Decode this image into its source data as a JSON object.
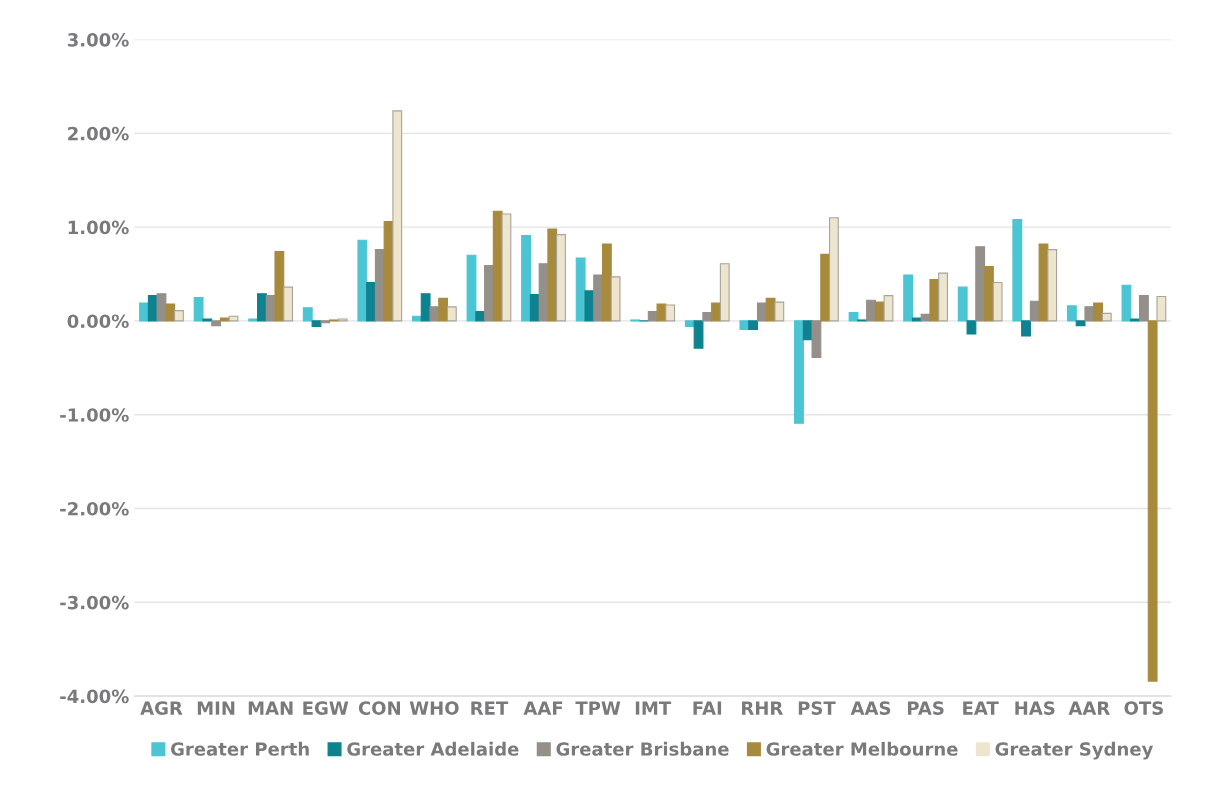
{
  "chart_data": {
    "type": "bar",
    "categories": [
      "AGR",
      "MIN",
      "MAN",
      "EGW",
      "CON",
      "WHO",
      "RET",
      "AAF",
      "TPW",
      "IMT",
      "FAI",
      "RHR",
      "PST",
      "AAS",
      "PAS",
      "EAT",
      "HAS",
      "AAR",
      "OTS"
    ],
    "series": [
      {
        "name": "Greater Perth",
        "color": "#4bc4d3",
        "values": [
          0.19,
          0.25,
          0.02,
          0.14,
          0.86,
          0.05,
          0.7,
          0.91,
          0.67,
          0.01,
          -0.06,
          -0.09,
          -1.09,
          0.09,
          0.49,
          0.36,
          1.08,
          0.16,
          0.38
        ]
      },
      {
        "name": "Greater Adelaide",
        "color": "#0f8290",
        "values": [
          0.27,
          0.02,
          0.29,
          -0.06,
          0.41,
          0.29,
          0.1,
          0.28,
          0.32,
          0.0,
          -0.29,
          -0.09,
          -0.2,
          0.01,
          0.03,
          -0.14,
          -0.16,
          -0.05,
          0.02
        ]
      },
      {
        "name": "Greater Brisbane",
        "color": "#948f89",
        "values": [
          0.29,
          -0.05,
          0.27,
          -0.02,
          0.76,
          0.15,
          0.59,
          0.61,
          0.49,
          0.1,
          0.09,
          0.19,
          -0.39,
          0.22,
          0.07,
          0.79,
          0.21,
          0.15,
          0.27
        ]
      },
      {
        "name": "Greater Melbourne",
        "color": "#a88a3c",
        "values": [
          0.18,
          0.03,
          0.74,
          0.01,
          1.06,
          0.24,
          1.17,
          0.98,
          0.82,
          0.18,
          0.19,
          0.24,
          0.71,
          0.2,
          0.44,
          0.58,
          0.82,
          0.19,
          -3.84
        ]
      },
      {
        "name": "Greater Sydney",
        "color": "#ede5cd",
        "values": [
          0.11,
          0.05,
          0.36,
          0.02,
          2.24,
          0.15,
          1.14,
          0.92,
          0.47,
          0.17,
          0.61,
          0.2,
          1.1,
          0.27,
          0.51,
          0.41,
          0.76,
          0.08,
          0.26
        ]
      }
    ],
    "ylim": [
      -4.0,
      3.0
    ],
    "yticks": [
      {
        "value": -4,
        "label": "-4.00%"
      },
      {
        "value": -3,
        "label": "-3.00%"
      },
      {
        "value": -2,
        "label": "-2.00%"
      },
      {
        "value": -1,
        "label": "-1.00%"
      },
      {
        "value": 0,
        "label": "0.00%"
      },
      {
        "value": 1,
        "label": "1.00%"
      },
      {
        "value": 2,
        "label": "2.00%"
      },
      {
        "value": 3,
        "label": "3.00%"
      }
    ],
    "grid": "y",
    "legend": "bottom"
  }
}
